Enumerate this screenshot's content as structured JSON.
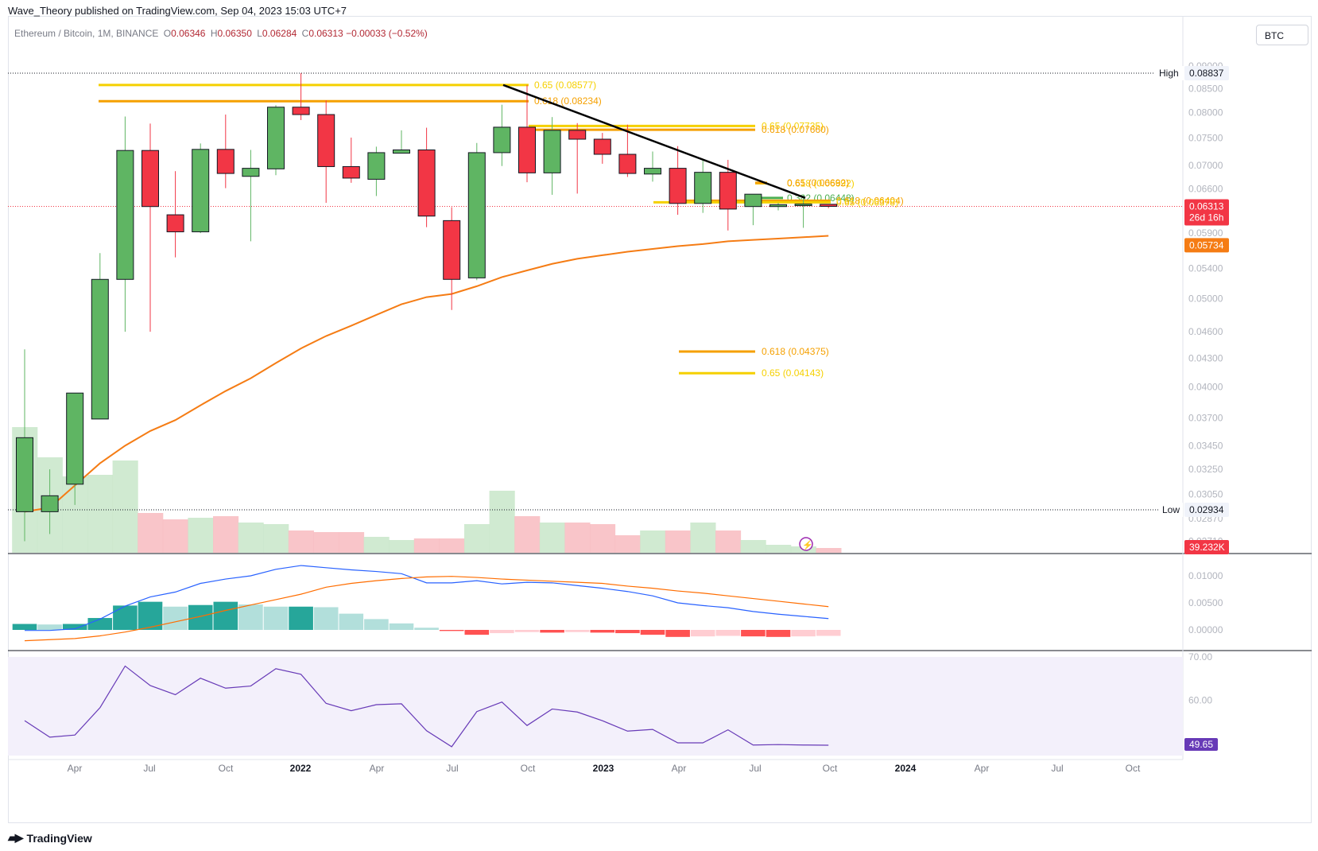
{
  "header": {
    "published_by": "Wave_Theory published on TradingView.com, Sep 04, 2023 15:03 UTC+7"
  },
  "symbol": {
    "name": "Ethereum / Bitcoin, 1M, BINANCE",
    "o_label": "O",
    "o": "0.06346",
    "h_label": "H",
    "h": "0.06350",
    "l_label": "L",
    "l": "0.06284",
    "c_label": "C",
    "c": "0.06313",
    "change": "−0.00033 (−0.52%)"
  },
  "currency_button": "BTC",
  "footer": {
    "brand": "TradingView"
  },
  "colors": {
    "up": "#5fb563",
    "down": "#f23645",
    "ma": "#f57c14",
    "fib_gold": "#f5d000",
    "fib_orange": "#f5a000",
    "trendline": "#000000",
    "macd": "#2962ff",
    "signal": "#ff6d00",
    "rsi": "#673ab7",
    "hist_up_strong": "#26a69a",
    "hist_up_weak": "#b2dfdb",
    "hist_down_strong": "#ff5252",
    "hist_down_weak": "#ffcdd2"
  },
  "chart_data": [
    {
      "type": "candlestick",
      "pane": "price",
      "title": "Ethereum / Bitcoin, 1M, BINANCE",
      "y_axis_scale": "log",
      "y_ticks": [
        "0.09000",
        "0.08500",
        "0.08000",
        "0.07500",
        "0.07000",
        "0.06600",
        "0.06313",
        "0.05900",
        "0.05734",
        "0.05400",
        "0.05000",
        "0.04600",
        "0.04300",
        "0.04000",
        "0.03700",
        "0.03450",
        "0.03250",
        "0.03050",
        "0.02870",
        "0.02710"
      ],
      "x_ticks": [
        "Apr",
        "Jul",
        "Oct",
        "2022",
        "Apr",
        "Jul",
        "Oct",
        "2023",
        "Apr",
        "Jul",
        "Oct",
        "2024",
        "Apr",
        "Jul",
        "Oct"
      ],
      "candles": [
        {
          "t": "2021-01",
          "o": 0.0292,
          "h": 0.044,
          "l": 0.0271,
          "c": 0.0352
        },
        {
          "t": "2021-02",
          "o": 0.0292,
          "h": 0.0325,
          "l": 0.0276,
          "c": 0.0304
        },
        {
          "t": "2021-03",
          "o": 0.0313,
          "h": 0.0389,
          "l": 0.0297,
          "c": 0.0394
        },
        {
          "t": "2021-04",
          "o": 0.0369,
          "h": 0.0561,
          "l": 0.037,
          "c": 0.0525
        },
        {
          "t": "2021-05",
          "o": 0.0525,
          "h": 0.0792,
          "l": 0.046,
          "c": 0.0727
        },
        {
          "t": "2021-06",
          "o": 0.0727,
          "h": 0.0778,
          "l": 0.046,
          "c": 0.0631
        },
        {
          "t": "2021-07",
          "o": 0.0618,
          "h": 0.069,
          "l": 0.0555,
          "c": 0.0592
        },
        {
          "t": "2021-08",
          "o": 0.0592,
          "h": 0.074,
          "l": 0.059,
          "c": 0.0729
        },
        {
          "t": "2021-09",
          "o": 0.0729,
          "h": 0.0796,
          "l": 0.0661,
          "c": 0.0686
        },
        {
          "t": "2021-10",
          "o": 0.0681,
          "h": 0.0728,
          "l": 0.0578,
          "c": 0.0695
        },
        {
          "t": "2021-11",
          "o": 0.0694,
          "h": 0.0815,
          "l": 0.0683,
          "c": 0.0811
        },
        {
          "t": "2021-12",
          "o": 0.0811,
          "h": 0.0884,
          "l": 0.0785,
          "c": 0.0796
        },
        {
          "t": "2022-01",
          "o": 0.0796,
          "h": 0.0825,
          "l": 0.0637,
          "c": 0.0698
        },
        {
          "t": "2022-02",
          "o": 0.0698,
          "h": 0.0751,
          "l": 0.067,
          "c": 0.0678
        },
        {
          "t": "2022-03",
          "o": 0.0676,
          "h": 0.0734,
          "l": 0.0648,
          "c": 0.0723
        },
        {
          "t": "2022-04",
          "o": 0.0722,
          "h": 0.0765,
          "l": 0.0722,
          "c": 0.0728
        },
        {
          "t": "2022-05",
          "o": 0.0728,
          "h": 0.077,
          "l": 0.0599,
          "c": 0.0616
        },
        {
          "t": "2022-06",
          "o": 0.0609,
          "h": 0.063,
          "l": 0.0486,
          "c": 0.0525
        },
        {
          "t": "2022-07",
          "o": 0.0527,
          "h": 0.0741,
          "l": 0.0524,
          "c": 0.0723
        },
        {
          "t": "2022-08",
          "o": 0.0723,
          "h": 0.0816,
          "l": 0.0699,
          "c": 0.0771
        },
        {
          "t": "2022-09",
          "o": 0.0771,
          "h": 0.0858,
          "l": 0.0671,
          "c": 0.0687
        },
        {
          "t": "2022-10",
          "o": 0.0687,
          "h": 0.0791,
          "l": 0.065,
          "c": 0.0765
        },
        {
          "t": "2022-11",
          "o": 0.0765,
          "h": 0.0779,
          "l": 0.0652,
          "c": 0.0748
        },
        {
          "t": "2022-12",
          "o": 0.0748,
          "h": 0.076,
          "l": 0.0703,
          "c": 0.072
        },
        {
          "t": "2023-01",
          "o": 0.072,
          "h": 0.0776,
          "l": 0.068,
          "c": 0.0686
        },
        {
          "t": "2023-02",
          "o": 0.0685,
          "h": 0.0725,
          "l": 0.0672,
          "c": 0.0695
        },
        {
          "t": "2023-03",
          "o": 0.0695,
          "h": 0.0735,
          "l": 0.0618,
          "c": 0.0636
        },
        {
          "t": "2023-04",
          "o": 0.0636,
          "h": 0.071,
          "l": 0.0621,
          "c": 0.0688
        },
        {
          "t": "2023-05",
          "o": 0.0688,
          "h": 0.071,
          "l": 0.0594,
          "c": 0.0627
        },
        {
          "t": "2023-06",
          "o": 0.0631,
          "h": 0.0651,
          "l": 0.0602,
          "c": 0.0651
        },
        {
          "t": "2023-07",
          "o": 0.0631,
          "h": 0.0637,
          "l": 0.0625,
          "c": 0.0634
        },
        {
          "t": "2023-08",
          "o": 0.0634,
          "h": 0.0649,
          "l": 0.0598,
          "c": 0.0635
        },
        {
          "t": "2023-09",
          "o": 0.06346,
          "h": 0.0635,
          "l": 0.06284,
          "c": 0.06313
        }
      ],
      "moving_average": [
        0.0292,
        0.0295,
        0.0312,
        0.033,
        0.0345,
        0.0358,
        0.0368,
        0.0382,
        0.0396,
        0.0409,
        0.0425,
        0.0441,
        0.0455,
        0.0467,
        0.048,
        0.0493,
        0.0502,
        0.0506,
        0.0516,
        0.0528,
        0.0537,
        0.0546,
        0.0553,
        0.0558,
        0.0563,
        0.0567,
        0.0571,
        0.0574,
        0.0578,
        0.058,
        0.0582,
        0.0584,
        0.0586
      ],
      "annotations": [
        {
          "label": "High",
          "value": "0.08837"
        },
        {
          "label": "Low",
          "value": "0.02934"
        },
        {
          "label": "last_price",
          "value": "0.06313",
          "countdown": "26d 16h"
        },
        {
          "label": "ma_value",
          "value": "0.05734"
        },
        {
          "label": "volume",
          "value": "39.232K"
        }
      ],
      "fib_levels": [
        {
          "text": "0.65 (0.08577)",
          "value": 0.08577,
          "color": "gold"
        },
        {
          "text": "0.618 (0.08234)",
          "value": 0.08234,
          "color": "orange"
        },
        {
          "text": "0.65 (0.07735)",
          "value": 0.07735,
          "color": "gold"
        },
        {
          "text": "0.618 (0.07660)",
          "value": 0.0766,
          "color": "orange"
        },
        {
          "text": "0.618 (0.06692)",
          "value": 0.06692,
          "color": "orange"
        },
        {
          "text": "0.65 (0.06692)",
          "value": 0.067,
          "color": "gold"
        },
        {
          "text": "0.382 (0.06448)",
          "value": 0.06448,
          "color": "green"
        },
        {
          "text": "0.618 (0.06404)",
          "value": 0.06404,
          "color": "orange"
        },
        {
          "text": "0.65 (0.06378)",
          "value": 0.06378,
          "color": "gold"
        },
        {
          "text": "0.618 (0.04375)",
          "value": 0.04375,
          "color": "orange"
        },
        {
          "text": "0.65 (0.04143)",
          "value": 0.04143,
          "color": "gold"
        }
      ],
      "volume_relative": [
        0.79,
        0.6,
        0.48,
        0.49,
        0.58,
        0.25,
        0.21,
        0.22,
        0.23,
        0.19,
        0.18,
        0.14,
        0.13,
        0.13,
        0.1,
        0.08,
        0.09,
        0.09,
        0.18,
        0.39,
        0.23,
        0.19,
        0.19,
        0.18,
        0.11,
        0.14,
        0.14,
        0.19,
        0.14,
        0.08,
        0.05,
        0.04,
        0.03
      ]
    },
    {
      "type": "line",
      "pane": "macd",
      "y_ticks": [
        "0.01000",
        "0.00500",
        "0.00000"
      ],
      "series": [
        {
          "values": [
            -0.0001,
            -0.0001,
            0.0002,
            0.002,
            0.0044,
            0.0061,
            0.007,
            0.0086,
            0.0094,
            0.01,
            0.0112,
            0.0119,
            0.0115,
            0.0111,
            0.0108,
            0.0104,
            0.0087,
            0.0087,
            0.0091,
            0.0085,
            0.0088,
            0.0087,
            0.0082,
            0.0077,
            0.0071,
            0.0063,
            0.005,
            0.0045,
            0.0041,
            0.0034,
            0.0029,
            0.0025,
            0.0021
          ]
        },
        {
          "values": [
            -0.002,
            -0.0018,
            -0.0016,
            -0.0011,
            -0.0004,
            0.0005,
            0.0015,
            0.0025,
            0.0036,
            0.0046,
            0.0056,
            0.0066,
            0.0079,
            0.0086,
            0.0091,
            0.0095,
            0.0098,
            0.0099,
            0.0097,
            0.0094,
            0.0092,
            0.009,
            0.0088,
            0.0086,
            0.0081,
            0.0077,
            0.0072,
            0.0068,
            0.0063,
            0.0058,
            0.0053,
            0.0048,
            0.0043
          ]
        }
      ],
      "histogram": [
        0.0011,
        0.001,
        0.0011,
        0.0022,
        0.0045,
        0.0052,
        0.0043,
        0.0046,
        0.0052,
        0.0047,
        0.0043,
        0.0043,
        0.0042,
        0.003,
        0.002,
        0.0012,
        0.0004,
        -0.0002,
        -0.0009,
        -0.0006,
        -0.0004,
        -0.0005,
        -0.0004,
        -0.0005,
        -0.0006,
        -0.0009,
        -0.0013,
        -0.0012,
        -0.0011,
        -0.0012,
        -0.0013,
        -0.0012,
        -0.0011
      ]
    },
    {
      "type": "line",
      "pane": "rsi",
      "y_ticks": [
        "70.00",
        "60.00"
      ],
      "last_value": "49.65",
      "series": [
        {
          "values": [
            55.3,
            51.5,
            52.0,
            58.3,
            67.9,
            63.4,
            61.3,
            65.1,
            62.8,
            63.3,
            67.3,
            66.0,
            59.3,
            57.6,
            59.0,
            59.2,
            53.0,
            49.3,
            57.4,
            59.6,
            54.2,
            58.0,
            57.3,
            55.3,
            52.9,
            53.3,
            50.2,
            50.2,
            53.2,
            49.7,
            49.8,
            49.7,
            49.65
          ]
        }
      ]
    }
  ]
}
